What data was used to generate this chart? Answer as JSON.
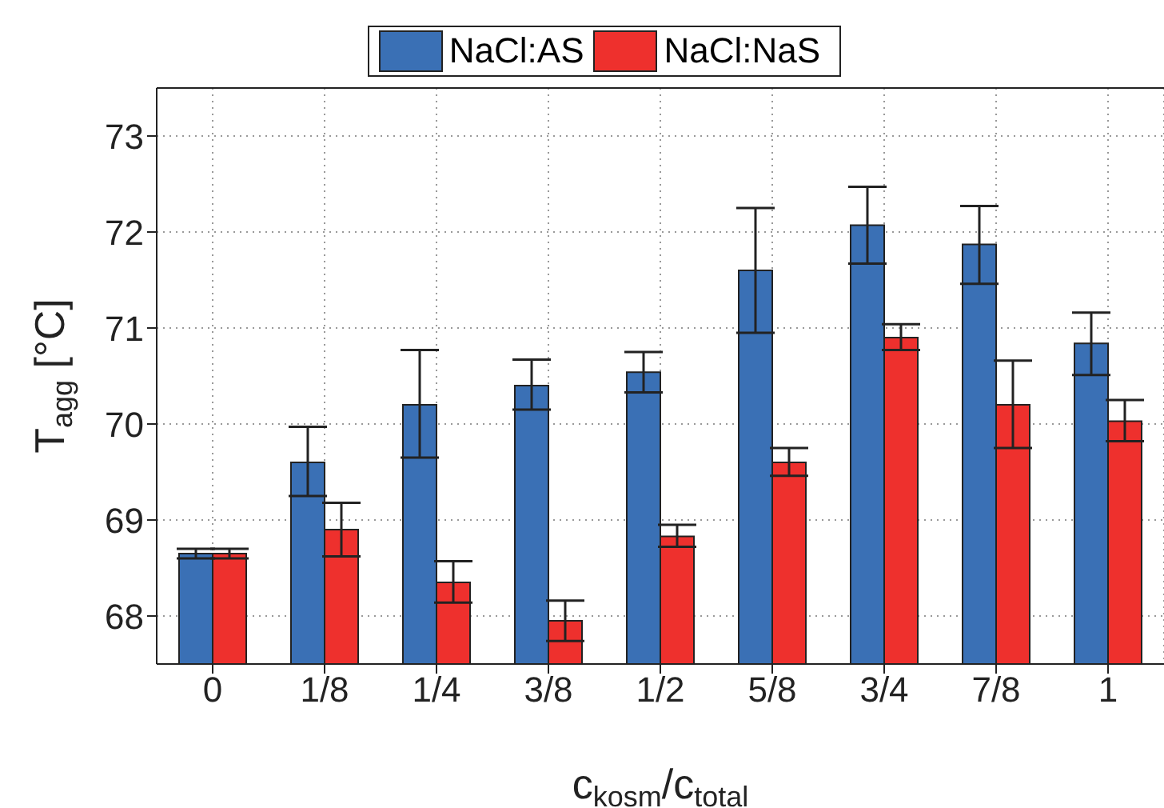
{
  "chart_data": {
    "type": "bar",
    "xlabel": "c$_{kosm}$/c$_{total}$",
    "ylabel": "T$_{agg}$ [°C]",
    "categories": [
      "0",
      "1/8",
      "1/4",
      "3/8",
      "1/2",
      "5/8",
      "3/4",
      "7/8",
      "1"
    ],
    "series": [
      {
        "name": "NaCl:AS",
        "color": "#3a70b5",
        "values": [
          68.65,
          69.6,
          70.2,
          70.4,
          70.54,
          71.6,
          72.07,
          71.87,
          70.84
        ],
        "errors": [
          [
            68.6,
            68.7
          ],
          [
            69.25,
            69.97
          ],
          [
            69.65,
            70.77
          ],
          [
            70.15,
            70.67
          ],
          [
            70.33,
            70.75
          ],
          [
            70.95,
            72.25
          ],
          [
            71.67,
            72.47
          ],
          [
            71.46,
            72.27
          ],
          [
            70.51,
            71.16
          ]
        ]
      },
      {
        "name": "NaCl:NaS",
        "color": "#ee302d",
        "values": [
          68.65,
          68.9,
          68.35,
          67.95,
          68.83,
          69.6,
          70.9,
          70.2,
          70.03
        ],
        "errors": [
          [
            68.6,
            68.7
          ],
          [
            68.62,
            69.18
          ],
          [
            68.14,
            68.57
          ],
          [
            67.74,
            68.16
          ],
          [
            68.72,
            68.95
          ],
          [
            69.46,
            69.75
          ],
          [
            70.77,
            71.04
          ],
          [
            69.75,
            70.66
          ],
          [
            69.82,
            70.25
          ]
        ]
      }
    ],
    "ylim": [
      67.5,
      73.5
    ],
    "yticks": [
      68,
      69,
      70,
      71,
      72,
      73
    ],
    "grid": true,
    "legend": "top"
  }
}
